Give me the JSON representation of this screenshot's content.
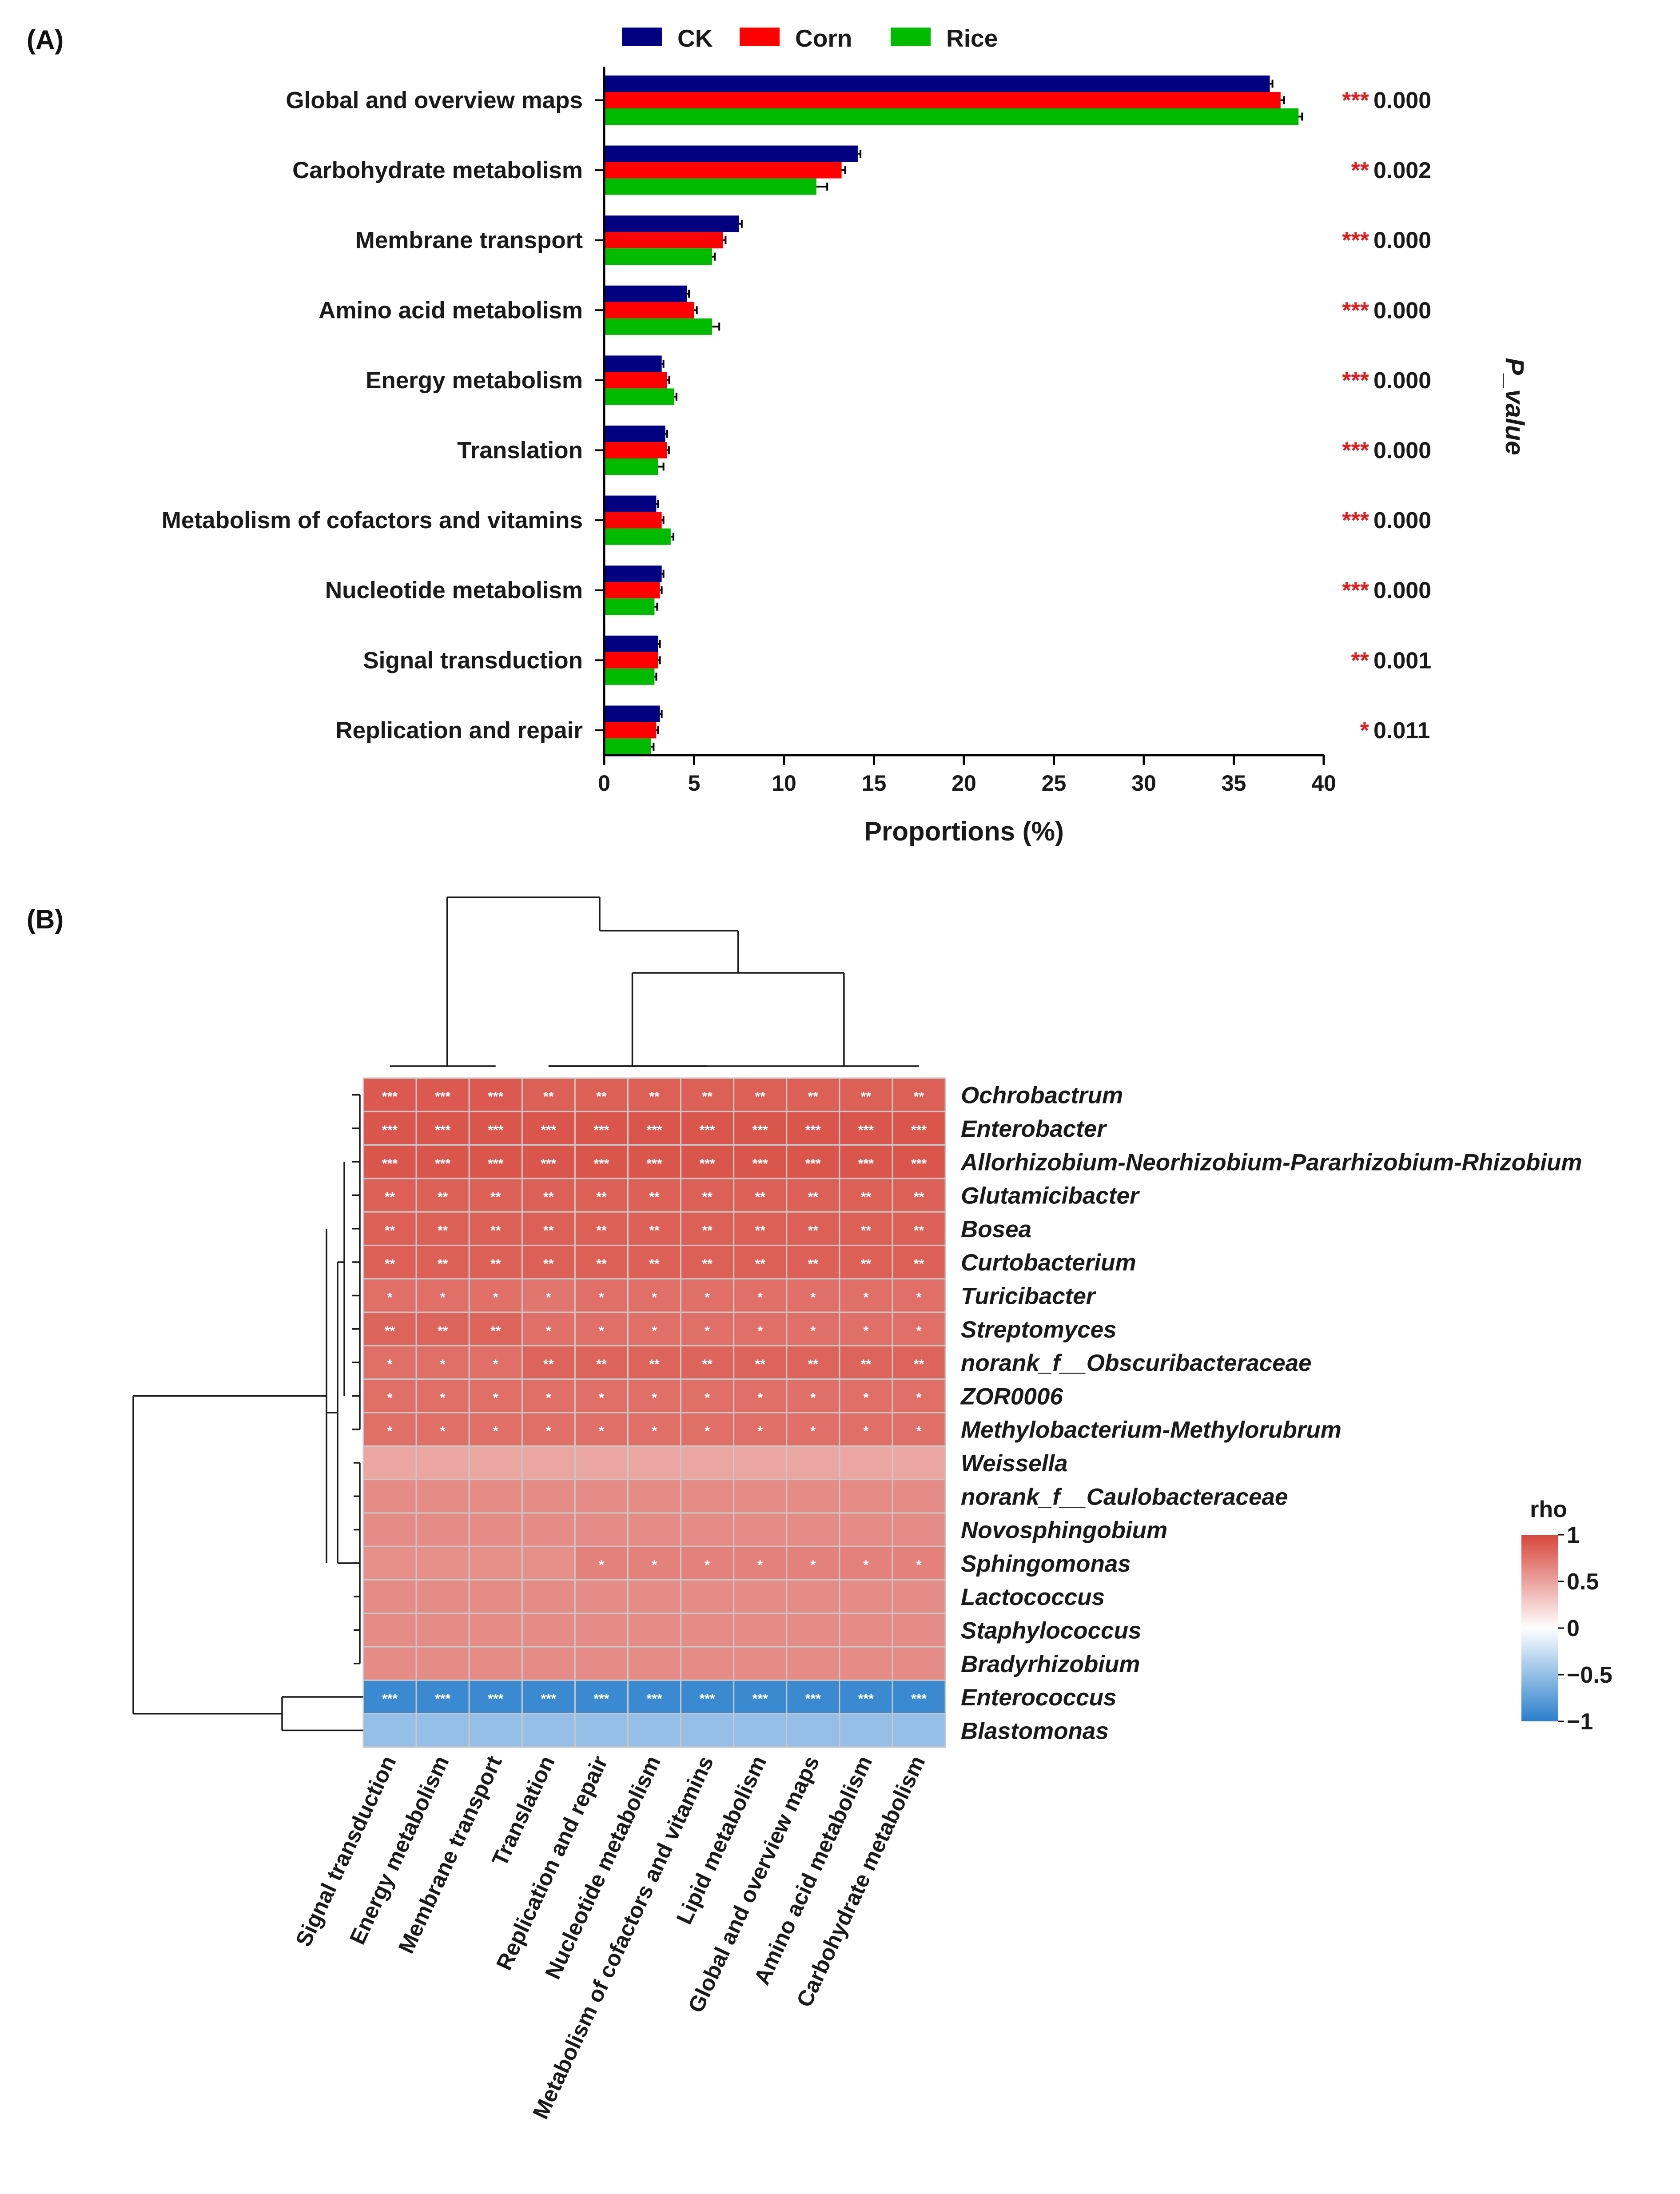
{
  "panel_a_label": "(A)",
  "panel_b_label": "(B)",
  "chart_data": [
    {
      "type": "bar",
      "orientation": "horizontal",
      "categories": [
        "Global and overview maps",
        "Carbohydrate metabolism",
        "Membrane transport",
        "Amino acid metabolism",
        "Energy metabolism",
        "Translation",
        "Metabolism of cofactors and vitamins",
        "Nucleotide metabolism",
        "Signal transduction",
        "Replication and repair"
      ],
      "series": [
        {
          "name": "CK",
          "color": "#000080",
          "values": [
            37.0,
            14.1,
            7.5,
            4.6,
            3.2,
            3.4,
            2.9,
            3.2,
            3.0,
            3.1
          ],
          "errors": [
            0.15,
            0.15,
            0.15,
            0.12,
            0.1,
            0.1,
            0.1,
            0.1,
            0.1,
            0.1
          ]
        },
        {
          "name": "Corn",
          "color": "#ff0000",
          "values": [
            37.6,
            13.2,
            6.6,
            5.0,
            3.5,
            3.5,
            3.2,
            3.1,
            3.0,
            2.9
          ],
          "errors": [
            0.2,
            0.2,
            0.15,
            0.15,
            0.12,
            0.1,
            0.1,
            0.1,
            0.1,
            0.1
          ]
        },
        {
          "name": "Rice",
          "color": "#00bb00",
          "values": [
            38.6,
            11.8,
            6.0,
            6.0,
            3.9,
            3.0,
            3.7,
            2.8,
            2.8,
            2.6
          ],
          "errors": [
            0.2,
            0.6,
            0.15,
            0.4,
            0.12,
            0.3,
            0.15,
            0.15,
            0.1,
            0.15
          ]
        }
      ],
      "p_values": [
        "0.000",
        "0.002",
        "0.000",
        "0.000",
        "0.000",
        "0.000",
        "0.000",
        "0.000",
        "0.001",
        "0.011"
      ],
      "significance": [
        "***",
        "**",
        "***",
        "***",
        "***",
        "***",
        "***",
        "***",
        "**",
        "*"
      ],
      "xlabel": "Proportions (%)",
      "p_axis_title": "P_value",
      "xlim": [
        0,
        40
      ],
      "xticks": [
        0,
        5,
        10,
        15,
        20,
        25,
        30,
        35,
        40
      ],
      "legend_position": "top"
    },
    {
      "type": "heatmap",
      "rows": [
        "Ochrobactrum",
        "Enterobacter",
        "Allorhizobium-Neorhizobium-Pararhizobium-Rhizobium",
        "Glutamicibacter",
        "Bosea",
        "Curtobacterium",
        "Turicibacter",
        "Streptomyces",
        "norank_f__Obscuribacteraceae",
        "ZOR0006",
        "Methylobacterium-Methylorubrum",
        "Weissella",
        "norank_f__Caulobacteraceae",
        "Novosphingobium",
        "Sphingomonas",
        "Lactococcus",
        "Staphylococcus",
        "Bradyrhizobium",
        "Enterococcus",
        "Blastomonas"
      ],
      "columns": [
        "Signal transduction",
        "Energy metabolism",
        "Membrane transport",
        "Translation",
        "Replication and repair",
        "Nucleotide metabolism",
        "Metabolism of cofactors and vitamins",
        "Lipid metabolism",
        "Global and overview maps",
        "Amino acid metabolism",
        "Carbohydrate metabolism"
      ],
      "rho": [
        [
          0.9,
          0.9,
          0.9,
          0.86,
          0.86,
          0.86,
          0.86,
          0.86,
          0.86,
          0.86,
          0.86
        ],
        [
          0.92,
          0.92,
          0.92,
          0.92,
          0.92,
          0.92,
          0.92,
          0.92,
          0.92,
          0.92,
          0.92
        ],
        [
          0.92,
          0.92,
          0.92,
          0.92,
          0.92,
          0.92,
          0.92,
          0.92,
          0.92,
          0.92,
          0.92
        ],
        [
          0.86,
          0.86,
          0.86,
          0.86,
          0.86,
          0.86,
          0.86,
          0.86,
          0.86,
          0.86,
          0.86
        ],
        [
          0.86,
          0.86,
          0.86,
          0.86,
          0.86,
          0.86,
          0.86,
          0.86,
          0.86,
          0.86,
          0.86
        ],
        [
          0.86,
          0.86,
          0.86,
          0.86,
          0.86,
          0.86,
          0.86,
          0.86,
          0.86,
          0.86,
          0.86
        ],
        [
          0.78,
          0.78,
          0.78,
          0.74,
          0.78,
          0.78,
          0.78,
          0.78,
          0.78,
          0.78,
          0.78
        ],
        [
          0.84,
          0.84,
          0.84,
          0.78,
          0.78,
          0.78,
          0.78,
          0.78,
          0.78,
          0.78,
          0.78
        ],
        [
          0.78,
          0.78,
          0.78,
          0.84,
          0.84,
          0.84,
          0.84,
          0.84,
          0.84,
          0.84,
          0.84
        ],
        [
          0.78,
          0.78,
          0.78,
          0.78,
          0.78,
          0.78,
          0.78,
          0.78,
          0.78,
          0.78,
          0.78
        ],
        [
          0.78,
          0.78,
          0.78,
          0.78,
          0.78,
          0.78,
          0.78,
          0.78,
          0.78,
          0.78,
          0.78
        ],
        [
          0.48,
          0.48,
          0.48,
          0.48,
          0.48,
          0.48,
          0.48,
          0.48,
          0.48,
          0.48,
          0.48
        ],
        [
          0.62,
          0.62,
          0.62,
          0.62,
          0.62,
          0.62,
          0.62,
          0.62,
          0.62,
          0.62,
          0.62
        ],
        [
          0.62,
          0.62,
          0.62,
          0.62,
          0.62,
          0.62,
          0.62,
          0.62,
          0.62,
          0.62,
          0.62
        ],
        [
          0.6,
          0.6,
          0.6,
          0.6,
          0.68,
          0.68,
          0.68,
          0.68,
          0.68,
          0.68,
          0.68
        ],
        [
          0.62,
          0.62,
          0.62,
          0.62,
          0.62,
          0.62,
          0.62,
          0.62,
          0.62,
          0.62,
          0.62
        ],
        [
          0.62,
          0.62,
          0.62,
          0.62,
          0.62,
          0.62,
          0.62,
          0.62,
          0.62,
          0.62,
          0.62
        ],
        [
          0.62,
          0.62,
          0.62,
          0.62,
          0.62,
          0.62,
          0.62,
          0.62,
          0.62,
          0.62,
          0.62
        ],
        [
          -0.92,
          -0.92,
          -0.92,
          -0.92,
          -0.92,
          -0.92,
          -0.92,
          -0.92,
          -0.92,
          -0.92,
          -0.92
        ],
        [
          -0.5,
          -0.5,
          -0.5,
          -0.5,
          -0.5,
          -0.5,
          -0.5,
          -0.5,
          -0.5,
          -0.5,
          -0.5
        ]
      ],
      "stars": [
        [
          "***",
          "***",
          "***",
          "**",
          "**",
          "**",
          "**",
          "**",
          "**",
          "**",
          "**"
        ],
        [
          "***",
          "***",
          "***",
          "***",
          "***",
          "***",
          "***",
          "***",
          "***",
          "***",
          "***"
        ],
        [
          "***",
          "***",
          "***",
          "***",
          "***",
          "***",
          "***",
          "***",
          "***",
          "***",
          "***"
        ],
        [
          "**",
          "**",
          "**",
          "**",
          "**",
          "**",
          "**",
          "**",
          "**",
          "**",
          "**"
        ],
        [
          "**",
          "**",
          "**",
          "**",
          "**",
          "**",
          "**",
          "**",
          "**",
          "**",
          "**"
        ],
        [
          "**",
          "**",
          "**",
          "**",
          "**",
          "**",
          "**",
          "**",
          "**",
          "**",
          "**"
        ],
        [
          "*",
          "*",
          "*",
          "*",
          "*",
          "*",
          "*",
          "*",
          "*",
          "*",
          "*"
        ],
        [
          "**",
          "**",
          "**",
          "*",
          "*",
          "*",
          "*",
          "*",
          "*",
          "*",
          "*"
        ],
        [
          "*",
          "*",
          "*",
          "**",
          "**",
          "**",
          "**",
          "**",
          "**",
          "**",
          "**"
        ],
        [
          "*",
          "*",
          "*",
          "*",
          "*",
          "*",
          "*",
          "*",
          "*",
          "*",
          "*"
        ],
        [
          "*",
          "*",
          "*",
          "*",
          "*",
          "*",
          "*",
          "*",
          "*",
          "*",
          "*"
        ],
        [
          "",
          "",
          "",
          "",
          "",
          "",
          "",
          "",
          "",
          "",
          ""
        ],
        [
          "",
          "",
          "",
          "",
          "",
          "",
          "",
          "",
          "",
          "",
          ""
        ],
        [
          "",
          "",
          "",
          "",
          "",
          "",
          "",
          "",
          "",
          "",
          ""
        ],
        [
          "",
          "",
          "",
          "",
          "*",
          "*",
          "*",
          "*",
          "*",
          "*",
          "*"
        ],
        [
          "",
          "",
          "",
          "",
          "",
          "",
          "",
          "",
          "",
          "",
          ""
        ],
        [
          "",
          "",
          "",
          "",
          "",
          "",
          "",
          "",
          "",
          "",
          ""
        ],
        [
          "",
          "",
          "",
          "",
          "",
          "",
          "",
          "",
          "",
          "",
          ""
        ],
        [
          "***",
          "***",
          "***",
          "***",
          "***",
          "***",
          "***",
          "***",
          "***",
          "***",
          "***"
        ],
        [
          "",
          "",
          "",
          "",
          "",
          "",
          "",
          "",
          "",
          "",
          ""
        ]
      ],
      "colorbar": {
        "title": "rho",
        "ticks": [
          "1",
          "0.5",
          "0",
          "−0.5",
          "−1"
        ],
        "min": -1,
        "max": 1,
        "colors": {
          "high": "#d7463c",
          "mid": "#ffffff",
          "low": "#2a7fcc"
        }
      }
    }
  ]
}
